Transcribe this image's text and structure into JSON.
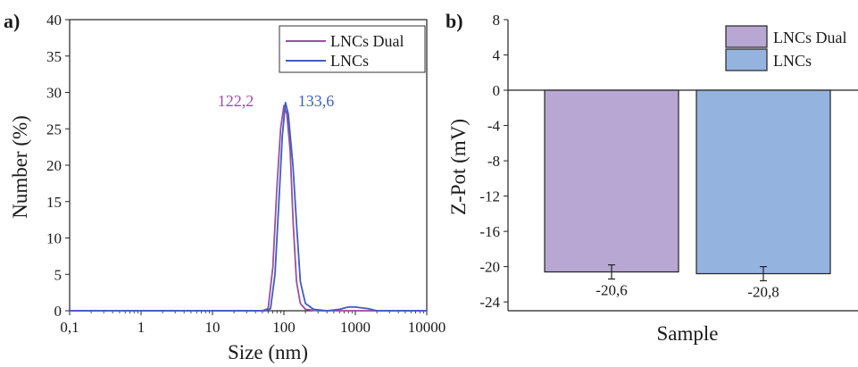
{
  "chart_data": [
    {
      "type": "line",
      "panel_label": "a)",
      "xlabel": "Size (nm)",
      "ylabel": "Number (%)",
      "xscale": "log",
      "xlim": [
        0.1,
        10000
      ],
      "ylim": [
        0,
        40
      ],
      "x_ticks": [
        0.1,
        1,
        10,
        100,
        1000,
        10000
      ],
      "x_tick_labels": [
        "0,1",
        "1",
        "10",
        "100",
        "1000",
        "10000"
      ],
      "y_ticks": [
        0,
        5,
        10,
        15,
        20,
        25,
        30,
        35,
        40
      ],
      "y_tick_labels": [
        "0",
        "5",
        "10",
        "15",
        "20",
        "25",
        "30",
        "35",
        "40"
      ],
      "legend_position": "top-right",
      "series": [
        {
          "name": "LNCs Dual",
          "color": "#9b4fa3",
          "x": [
            0.1,
            50,
            60,
            70,
            80,
            90,
            100,
            110,
            122.2,
            135,
            150,
            170,
            200,
            300,
            500,
            1000,
            2000,
            10000
          ],
          "y": [
            0,
            0,
            0.3,
            6,
            17,
            25,
            28.2,
            27,
            22,
            12,
            4,
            1,
            0.2,
            0,
            0,
            0,
            0,
            0
          ]
        },
        {
          "name": "LNCs",
          "color": "#3c5fbf",
          "x": [
            0.1,
            55,
            65,
            75,
            85,
            95,
            105,
            115,
            133.6,
            150,
            170,
            200,
            260,
            400,
            600,
            800,
            1000,
            1500,
            2000,
            10000
          ],
          "y": [
            0,
            0,
            0.3,
            5,
            15,
            24,
            28.6,
            27,
            20,
            12,
            4,
            1,
            0.2,
            0,
            0.2,
            0.5,
            0.5,
            0.3,
            0,
            0
          ]
        }
      ],
      "annotations": [
        {
          "text": "122,2",
          "series": "LNCs Dual",
          "color": "#9b4fa3"
        },
        {
          "text": "133,6",
          "series": "LNCs",
          "color": "#3c5fbf"
        }
      ]
    },
    {
      "type": "bar",
      "panel_label": "b)",
      "xlabel": "Sample",
      "ylabel": "Z-Pot (mV)",
      "ylim": [
        -25,
        8
      ],
      "y_ticks": [
        8,
        4,
        0,
        -4,
        -8,
        -12,
        -16,
        -20,
        -24
      ],
      "legend_position": "top-right",
      "series": [
        {
          "name": "LNCs Dual",
          "value": -20.6,
          "error": 0.8,
          "label": "-20,6",
          "color": "#b8a7d2"
        },
        {
          "name": "LNCs",
          "value": -20.8,
          "error": 0.8,
          "label": "-20,8",
          "color": "#95b3df"
        }
      ]
    }
  ]
}
